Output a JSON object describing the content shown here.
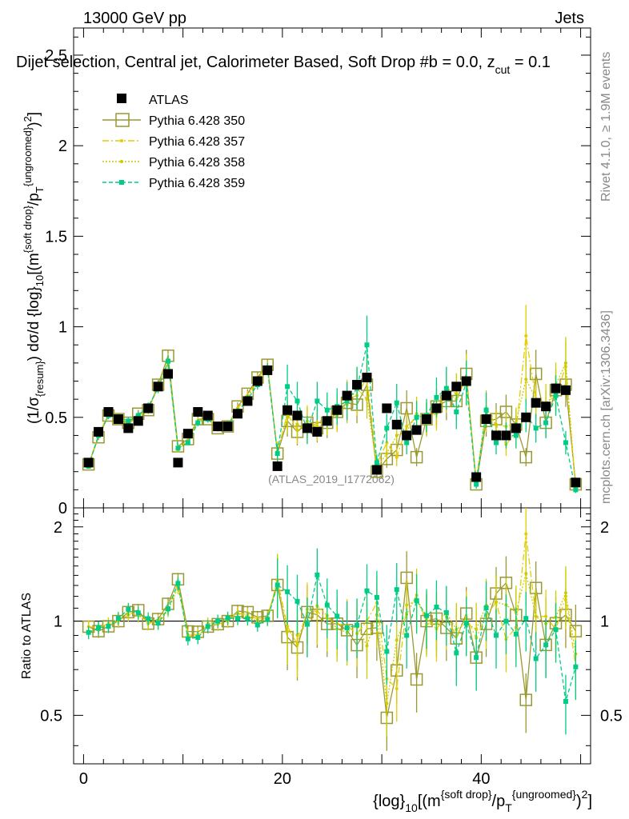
{
  "header": {
    "beam": "13000 GeV pp",
    "category": "Jets",
    "plot_title": "Dijet selection, Central jet, Calorimeter Based, Soft Drop #b = 0.0, z",
    "title_sub": "cut",
    "title_tail": " = 0.1",
    "events": "≥ 1.9M events",
    "rivet": "Rivet 4.1.0,",
    "mcplots": "mcplots.cern.ch [arXiv:1306.3436]",
    "analysis_id": "(ATLAS_2019_I1772062)"
  },
  "axes": {
    "main_ylabel": "(1/σ_{resum}) dσ/d {log}_{10}[(m^{soft drop}/p_T^{ungroomed})^2]",
    "ratio_ylabel": "Ratio to ATLAS",
    "xlabel": "{log}_{10}[(m^{soft drop}/p_T^{ungroomed})^2]",
    "main_yticks": [
      "0",
      "0.5",
      "1",
      "1.5",
      "2",
      "2.5"
    ],
    "ratio_yticks": [
      "0.5",
      "1",
      "2"
    ],
    "xticks": [
      "0",
      "20",
      "40"
    ]
  },
  "colors": {
    "data": "#000000",
    "p350": "#999933",
    "p357": "#e6cc00",
    "p358": "#cccc00",
    "p359": "#00cc88"
  },
  "legend": [
    {
      "label": "ATLAS"
    },
    {
      "label": "Pythia 6.428 350"
    },
    {
      "label": "Pythia 6.428 357"
    },
    {
      "label": "Pythia 6.428 358"
    },
    {
      "label": "Pythia 6.428 359"
    }
  ],
  "chart_data": {
    "type": "scatter",
    "x": [
      0.5,
      1.5,
      2.5,
      3.5,
      4.5,
      5.5,
      6.5,
      7.5,
      8.5,
      9.5,
      10.5,
      11.5,
      12.5,
      13.5,
      14.5,
      15.5,
      16.5,
      17.5,
      18.5,
      19.5,
      20.5,
      21.5,
      22.5,
      23.5,
      24.5,
      25.5,
      26.5,
      27.5,
      28.5,
      29.5,
      30.5,
      31.5,
      32.5,
      33.5,
      34.5,
      35.5,
      36.5,
      37.5,
      38.5,
      39.5,
      40.5,
      41.5,
      42.5,
      43.5,
      44.5,
      45.5,
      46.5,
      47.5,
      48.5,
      49.5
    ],
    "xlim": [
      -1,
      51
    ],
    "ylim_main": [
      0,
      2.65
    ],
    "ylim_ratio": [
      0.35,
      2.3
    ],
    "series": [
      {
        "name": "ATLAS",
        "values": [
          0.25,
          0.42,
          0.53,
          0.49,
          0.44,
          0.48,
          0.55,
          0.67,
          0.74,
          0.25,
          0.41,
          0.53,
          0.51,
          0.45,
          0.45,
          0.52,
          0.59,
          0.7,
          0.76,
          0.23,
          0.54,
          0.51,
          0.44,
          0.42,
          0.48,
          0.54,
          0.62,
          0.68,
          0.72,
          0.21,
          0.55,
          0.46,
          0.4,
          0.43,
          0.49,
          0.55,
          0.62,
          0.67,
          0.7,
          0.17,
          0.49,
          0.4,
          0.4,
          0.44,
          0.5,
          0.58,
          0.56,
          0.66,
          0.65,
          0.14
        ]
      },
      {
        "name": "Pythia 6.428 350",
        "values": [
          0.24,
          0.39,
          0.51,
          0.49,
          0.47,
          0.52,
          0.54,
          0.68,
          0.84,
          0.34,
          0.38,
          0.49,
          0.49,
          0.44,
          0.45,
          0.56,
          0.63,
          0.72,
          0.79,
          0.3,
          0.48,
          0.42,
          0.47,
          0.44,
          0.47,
          0.53,
          0.58,
          0.57,
          0.68,
          0.2,
          0.27,
          0.32,
          0.55,
          0.28,
          0.49,
          0.56,
          0.59,
          0.59,
          0.74,
          0.13,
          0.48,
          0.49,
          0.53,
          0.46,
          0.28,
          0.74,
          0.47,
          0.65,
          0.68,
          0.13
        ]
      },
      {
        "name": "Pythia 6.428 357",
        "values": [
          0.24,
          0.4,
          0.52,
          0.49,
          0.46,
          0.51,
          0.54,
          0.67,
          0.82,
          0.33,
          0.37,
          0.48,
          0.49,
          0.44,
          0.45,
          0.55,
          0.62,
          0.71,
          0.78,
          0.31,
          0.52,
          0.43,
          0.48,
          0.45,
          0.49,
          0.53,
          0.6,
          0.62,
          0.72,
          0.24,
          0.36,
          0.28,
          0.45,
          0.5,
          0.5,
          0.52,
          0.64,
          0.6,
          0.72,
          0.15,
          0.51,
          0.46,
          0.35,
          0.42,
          0.95,
          0.6,
          0.58,
          0.62,
          0.78,
          0.1
        ]
      },
      {
        "name": "Pythia 6.428 358",
        "values": [
          0.23,
          0.4,
          0.51,
          0.5,
          0.47,
          0.5,
          0.55,
          0.66,
          0.8,
          0.32,
          0.37,
          0.47,
          0.5,
          0.45,
          0.46,
          0.55,
          0.61,
          0.7,
          0.77,
          0.31,
          0.5,
          0.46,
          0.43,
          0.47,
          0.5,
          0.51,
          0.57,
          0.66,
          0.6,
          0.22,
          0.3,
          0.4,
          0.42,
          0.52,
          0.48,
          0.54,
          0.66,
          0.63,
          0.69,
          0.16,
          0.55,
          0.46,
          0.45,
          0.47,
          0.71,
          0.6,
          0.55,
          0.68,
          0.8,
          0.11
        ]
      },
      {
        "name": "Pythia 6.428 359",
        "values": [
          0.23,
          0.4,
          0.51,
          0.5,
          0.48,
          0.51,
          0.56,
          0.66,
          0.81,
          0.33,
          0.36,
          0.47,
          0.49,
          0.45,
          0.46,
          0.53,
          0.6,
          0.68,
          0.77,
          0.3,
          0.67,
          0.59,
          0.43,
          0.59,
          0.54,
          0.56,
          0.59,
          0.66,
          0.9,
          0.25,
          0.44,
          0.58,
          0.36,
          0.5,
          0.51,
          0.61,
          0.66,
          0.53,
          0.69,
          0.13,
          0.54,
          0.36,
          0.4,
          0.4,
          0.51,
          0.44,
          0.47,
          0.62,
          0.36,
          0.1
        ]
      }
    ]
  }
}
